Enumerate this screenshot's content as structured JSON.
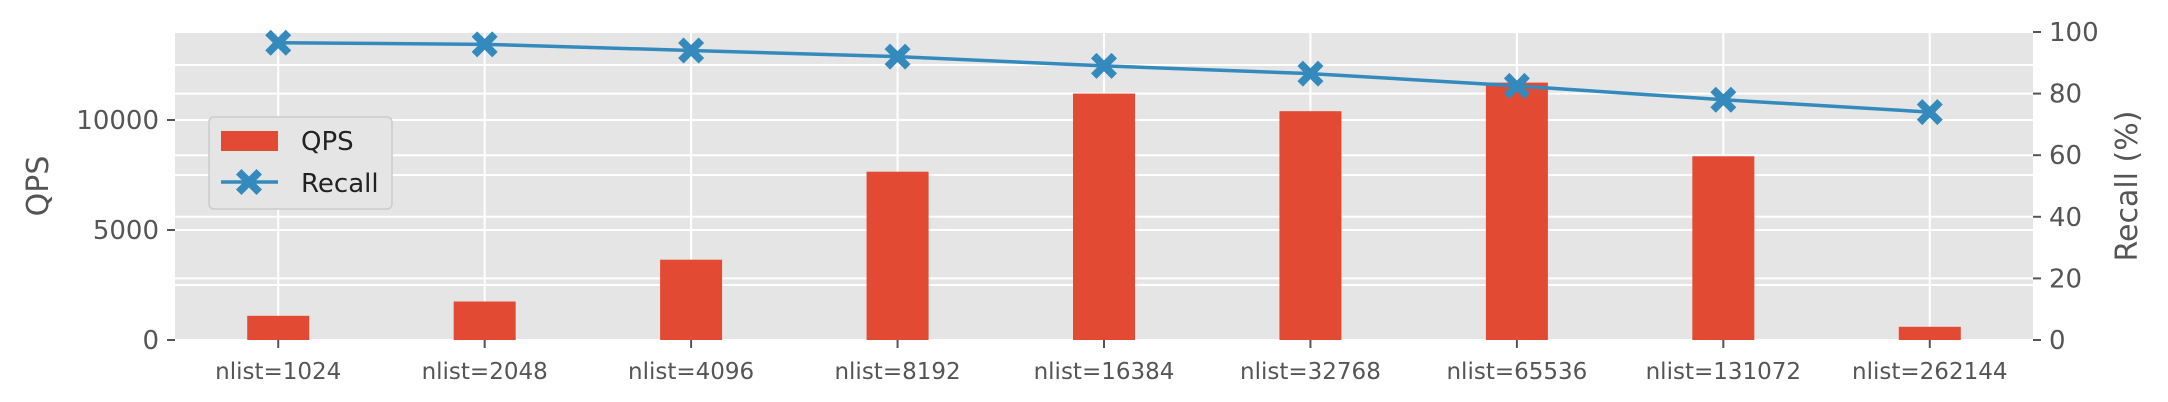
{
  "chart_data": {
    "type": "bar",
    "categories": [
      "nlist=1024",
      "nlist=2048",
      "nlist=4096",
      "nlist=8192",
      "nlist=16384",
      "nlist=32768",
      "nlist=65536",
      "nlist=131072",
      "nlist=262144"
    ],
    "series": [
      {
        "name": "QPS",
        "type": "bar",
        "axis": "left",
        "color": "#E24A33",
        "values": [
          1100,
          1750,
          3650,
          7650,
          11200,
          10400,
          11700,
          8350,
          600
        ]
      },
      {
        "name": "Recall",
        "type": "line",
        "axis": "right",
        "color": "#348ABD",
        "marker": "X",
        "values": [
          96.5,
          96,
          94,
          92,
          89,
          86.5,
          82.5,
          78,
          74
        ]
      }
    ],
    "left_axis": {
      "label": "QPS",
      "ylim": [
        0,
        14000
      ],
      "ticks": [
        0,
        5000,
        10000
      ]
    },
    "right_axis": {
      "label": "Recall (%)",
      "ylim": [
        0,
        100
      ],
      "ticks": [
        0,
        20,
        40,
        60,
        80,
        100
      ]
    },
    "grid": true,
    "legend": {
      "position": "center-left",
      "entries": [
        "QPS",
        "Recall"
      ]
    },
    "colors": {
      "background": "#E5E5E5",
      "grid": "#FFFFFF",
      "tick_text": "#555555",
      "label_text": "#555555"
    }
  }
}
